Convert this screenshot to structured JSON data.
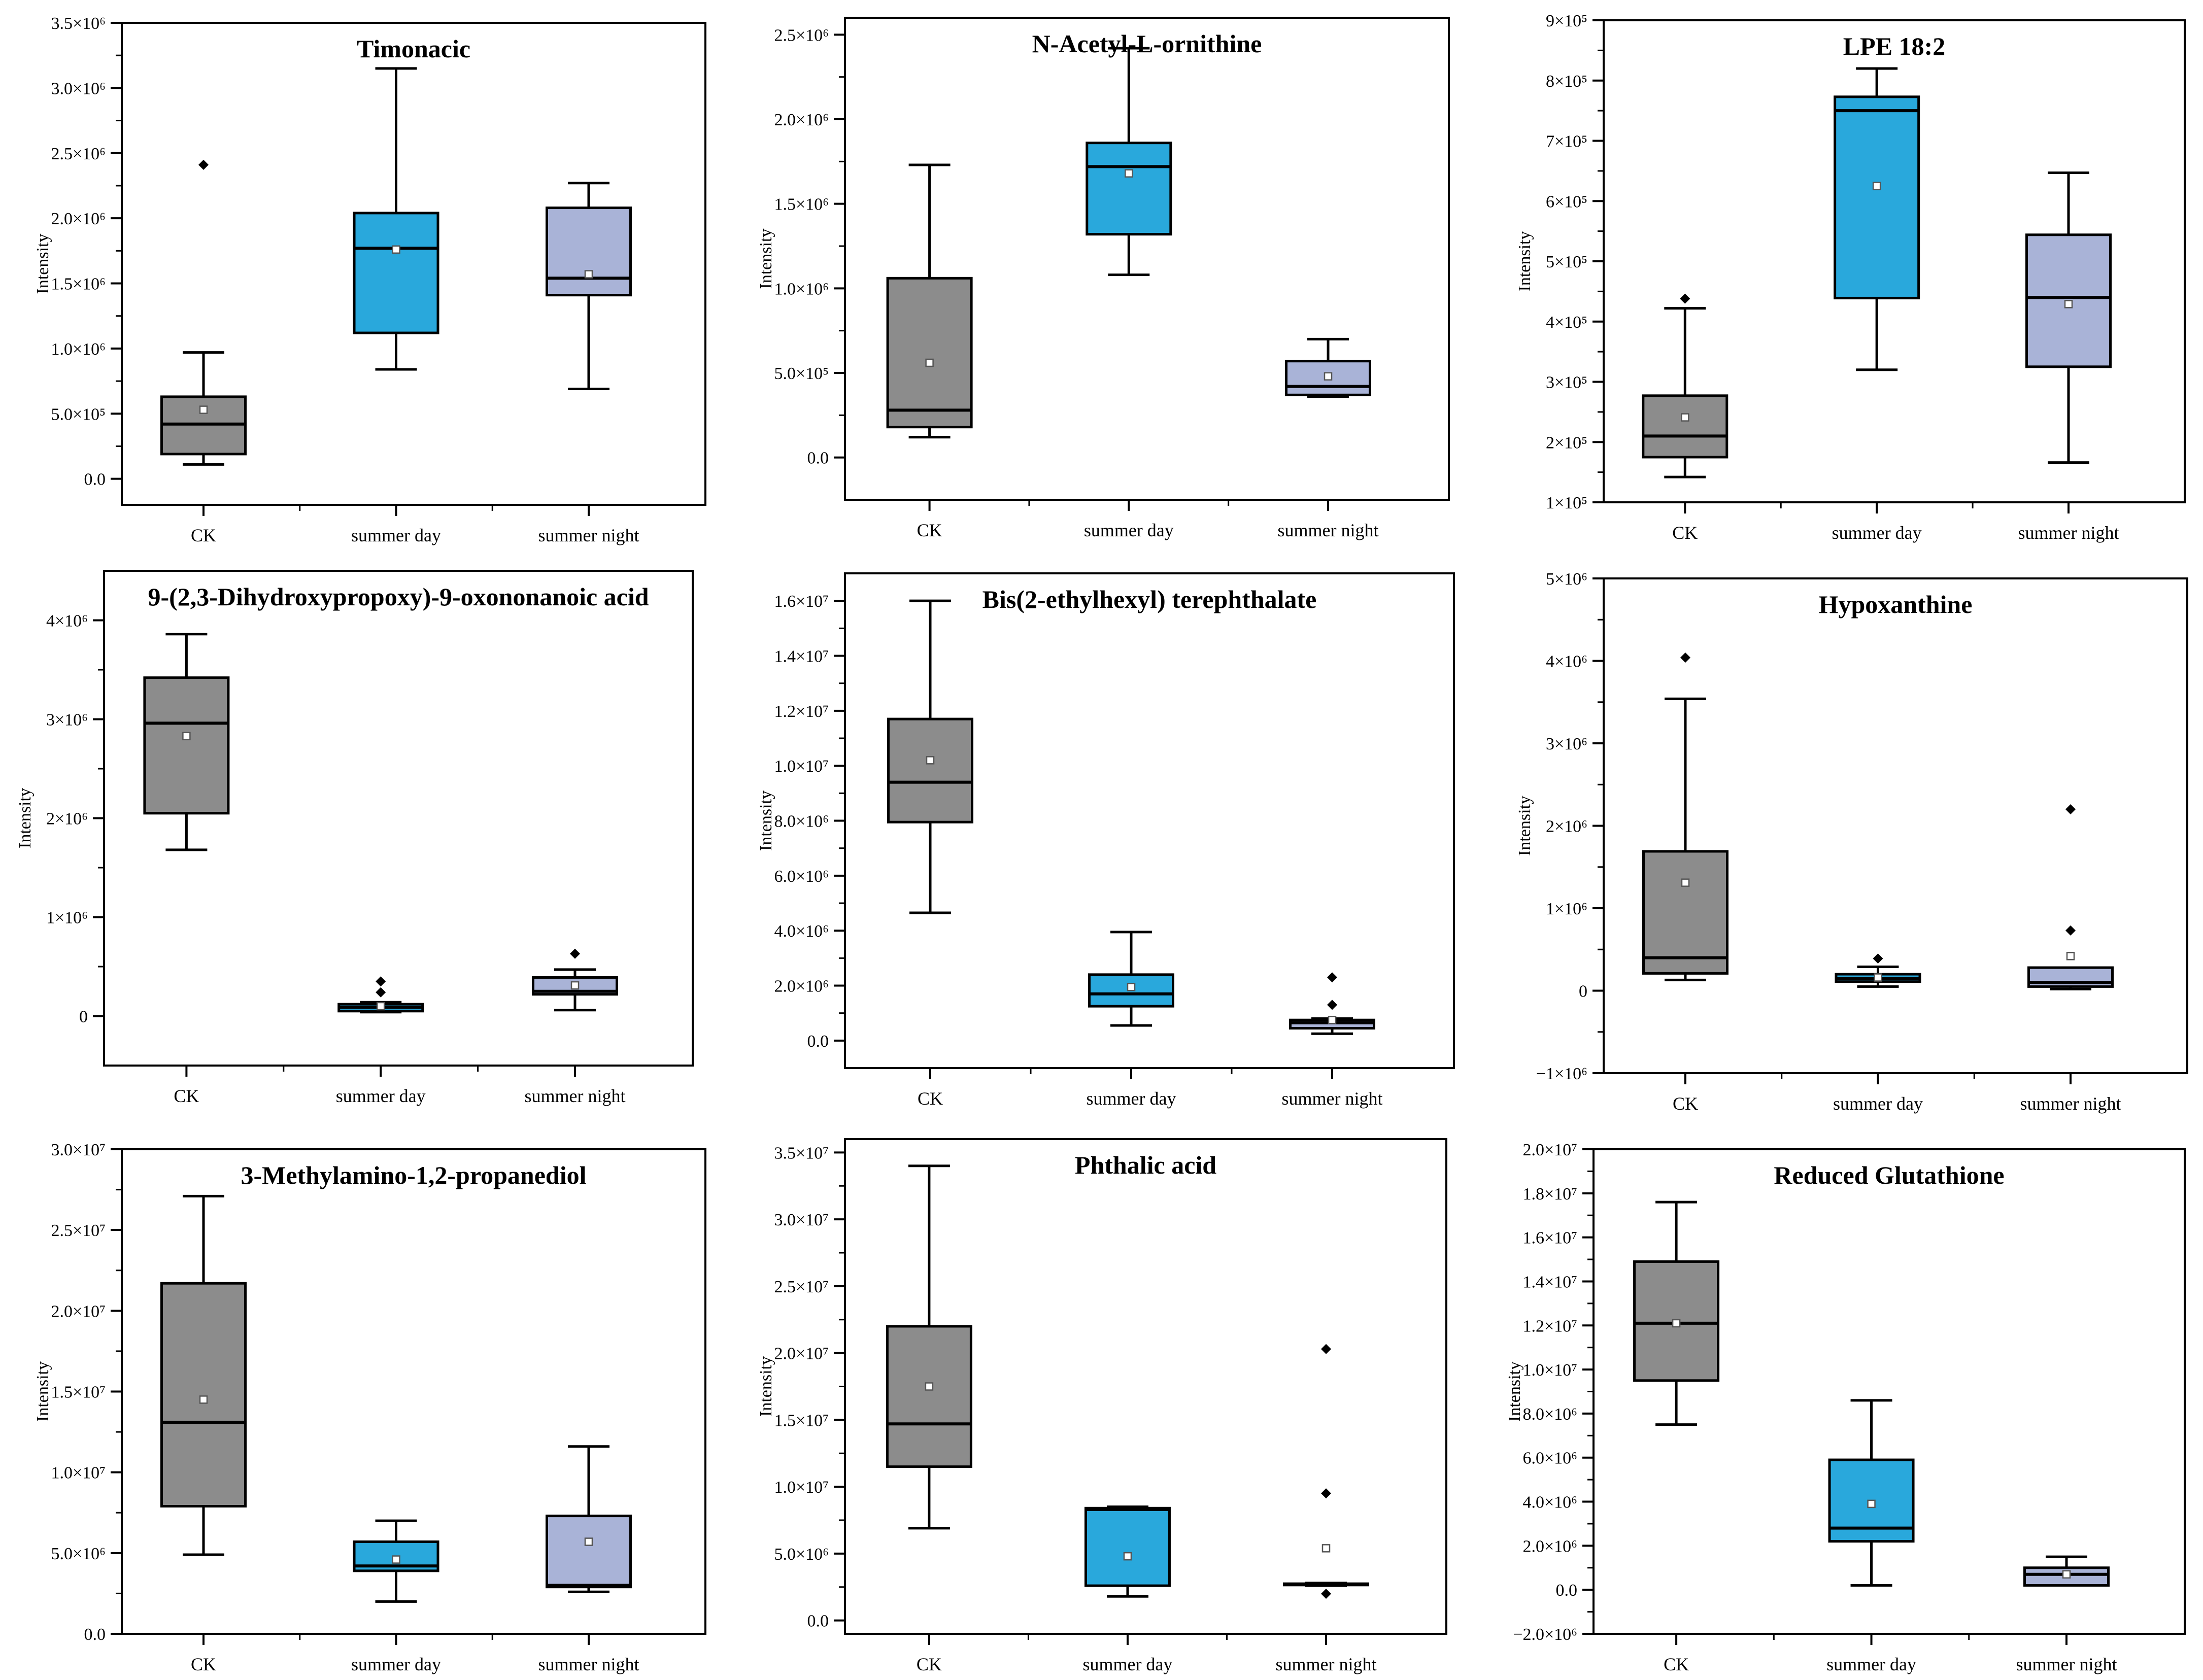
{
  "colors": {
    "CK": "#8c8c8c",
    "summer day": "#29a8dc",
    "summer night": "#a9b3d7"
  },
  "chart_data": [
    {
      "type": "box",
      "title": "Timonacic",
      "ylabel": "Intensity",
      "categories": [
        "CK",
        "summer day",
        "summer night"
      ],
      "ylim": [
        -200000,
        3500000
      ],
      "ticks": [
        {
          "v": 0,
          "label": "0.0"
        },
        {
          "v": 500000,
          "label": "5.0×10⁵"
        },
        {
          "v": 1000000,
          "label": "1.0×10⁶"
        },
        {
          "v": 1500000,
          "label": "1.5×10⁶"
        },
        {
          "v": 2000000,
          "label": "2.0×10⁶"
        },
        {
          "v": 2500000,
          "label": "2.5×10⁶"
        },
        {
          "v": 3000000,
          "label": "3.0×10⁶"
        },
        {
          "v": 3500000,
          "label": "3.5×10⁶"
        }
      ],
      "boxes": [
        {
          "min": 110000,
          "q1": 190000,
          "median": 420000,
          "q3": 630000,
          "max": 970000,
          "mean": 530000,
          "outliers": [
            2410000
          ]
        },
        {
          "min": 840000,
          "q1": 1120000,
          "median": 1770000,
          "q3": 2040000,
          "max": 3150000,
          "mean": 1760000,
          "outliers": []
        },
        {
          "min": 690000,
          "q1": 1410000,
          "median": 1540000,
          "q3": 2080000,
          "max": 2270000,
          "mean": 1570000,
          "outliers": []
        }
      ]
    },
    {
      "type": "box",
      "title": "N-Acetyl-L-ornithine",
      "ylabel": "Intensity",
      "categories": [
        "CK",
        "summer day",
        "summer night"
      ],
      "ylim": [
        -250000,
        2600000
      ],
      "ticks": [
        {
          "v": 0,
          "label": "0.0"
        },
        {
          "v": 500000,
          "label": "5.0×10⁵"
        },
        {
          "v": 1000000,
          "label": "1.0×10⁶"
        },
        {
          "v": 1500000,
          "label": "1.5×10⁶"
        },
        {
          "v": 2000000,
          "label": "2.0×10⁶"
        },
        {
          "v": 2500000,
          "label": "2.5×10⁶"
        }
      ],
      "boxes": [
        {
          "min": 120000,
          "q1": 180000,
          "median": 280000,
          "q3": 1060000,
          "max": 1730000,
          "mean": 560000,
          "outliers": []
        },
        {
          "min": 1080000,
          "q1": 1320000,
          "median": 1720000,
          "q3": 1860000,
          "max": 2420000,
          "mean": 1680000,
          "outliers": []
        },
        {
          "min": 360000,
          "q1": 370000,
          "median": 420000,
          "q3": 570000,
          "max": 700000,
          "mean": 480000,
          "outliers": []
        }
      ]
    },
    {
      "type": "box",
      "title": "LPE 18:2",
      "ylabel": "Intensity",
      "categories": [
        "CK",
        "summer day",
        "summer night"
      ],
      "ylim": [
        100000,
        900000
      ],
      "ticks": [
        {
          "v": 100000,
          "label": "1×10⁵"
        },
        {
          "v": 200000,
          "label": "2×10⁵"
        },
        {
          "v": 300000,
          "label": "3×10⁵"
        },
        {
          "v": 400000,
          "label": "4×10⁵"
        },
        {
          "v": 500000,
          "label": "5×10⁵"
        },
        {
          "v": 600000,
          "label": "6×10⁵"
        },
        {
          "v": 700000,
          "label": "7×10⁵"
        },
        {
          "v": 800000,
          "label": "8×10⁵"
        },
        {
          "v": 900000,
          "label": "9×10⁵"
        }
      ],
      "boxes": [
        {
          "min": 142000,
          "q1": 175000,
          "median": 210000,
          "q3": 277000,
          "max": 422000,
          "mean": 241000,
          "outliers": [
            438000
          ]
        },
        {
          "min": 320000,
          "q1": 439000,
          "median": 750000,
          "q3": 773000,
          "max": 820000,
          "mean": 625000,
          "outliers": []
        },
        {
          "min": 166000,
          "q1": 325000,
          "median": 440000,
          "q3": 544000,
          "max": 647000,
          "mean": 429000,
          "outliers": []
        }
      ]
    },
    {
      "type": "box",
      "title": "9-(2,3-Dihydroxypropoxy)-9-oxononanoic acid",
      "ylabel": "Intensity",
      "categories": [
        "CK",
        "summer day",
        "summer night"
      ],
      "ylim": [
        -500000,
        4500000
      ],
      "ticks": [
        {
          "v": 0,
          "label": "0"
        },
        {
          "v": 1000000,
          "label": "1×10⁶"
        },
        {
          "v": 2000000,
          "label": "2×10⁶"
        },
        {
          "v": 3000000,
          "label": "3×10⁶"
        },
        {
          "v": 4000000,
          "label": "4×10⁶"
        }
      ],
      "boxes": [
        {
          "min": 1680000,
          "q1": 2050000,
          "median": 2960000,
          "q3": 3420000,
          "max": 3860000,
          "mean": 2830000,
          "outliers": []
        },
        {
          "min": 40000,
          "q1": 50000,
          "median": 90000,
          "q3": 120000,
          "max": 140000,
          "mean": 100000,
          "outliers": [
            240000,
            350000
          ]
        },
        {
          "min": 60000,
          "q1": 220000,
          "median": 250000,
          "q3": 390000,
          "max": 470000,
          "mean": 310000,
          "outliers": [
            630000
          ]
        }
      ]
    },
    {
      "type": "box",
      "title": "Bis(2-ethylhexyl) terephthalate",
      "ylabel": "Intensity",
      "categories": [
        "CK",
        "summer day",
        "summer night"
      ],
      "ylim": [
        -1000000,
        17000000
      ],
      "ticks": [
        {
          "v": 0,
          "label": "0.0"
        },
        {
          "v": 2000000,
          "label": "2.0×10⁶"
        },
        {
          "v": 4000000,
          "label": "4.0×10⁶"
        },
        {
          "v": 6000000,
          "label": "6.0×10⁶"
        },
        {
          "v": 8000000,
          "label": "8.0×10⁶"
        },
        {
          "v": 10000000,
          "label": "1.0×10⁷"
        },
        {
          "v": 12000000,
          "label": "1.2×10⁷"
        },
        {
          "v": 14000000,
          "label": "1.4×10⁷"
        },
        {
          "v": 16000000,
          "label": "1.6×10⁷"
        }
      ],
      "boxes": [
        {
          "min": 4650000,
          "q1": 7950000,
          "median": 9400000,
          "q3": 11700000,
          "max": 16000000,
          "mean": 10200000,
          "outliers": []
        },
        {
          "min": 550000,
          "q1": 1250000,
          "median": 1700000,
          "q3": 2400000,
          "max": 3950000,
          "mean": 1950000,
          "outliers": []
        },
        {
          "min": 250000,
          "q1": 450000,
          "median": 650000,
          "q3": 750000,
          "max": 800000,
          "mean": 750000,
          "outliers": [
            1300000,
            2300000
          ]
        }
      ]
    },
    {
      "type": "box",
      "title": "Hypoxanthine",
      "ylabel": "Intensity",
      "categories": [
        "CK",
        "summer day",
        "summer night"
      ],
      "ylim": [
        -1000000,
        5000000
      ],
      "ticks": [
        {
          "v": -1000000,
          "label": "−1×10⁶"
        },
        {
          "v": 0,
          "label": "0"
        },
        {
          "v": 1000000,
          "label": "1×10⁶"
        },
        {
          "v": 2000000,
          "label": "2×10⁶"
        },
        {
          "v": 3000000,
          "label": "3×10⁶"
        },
        {
          "v": 4000000,
          "label": "4×10⁶"
        },
        {
          "v": 5000000,
          "label": "5×10⁶"
        }
      ],
      "boxes": [
        {
          "min": 130000,
          "q1": 210000,
          "median": 400000,
          "q3": 1690000,
          "max": 3540000,
          "mean": 1310000,
          "outliers": [
            4040000
          ]
        },
        {
          "min": 50000,
          "q1": 110000,
          "median": 150000,
          "q3": 200000,
          "max": 290000,
          "mean": 160000,
          "outliers": [
            390000
          ]
        },
        {
          "min": 20000,
          "q1": 50000,
          "median": 100000,
          "q3": 280000,
          "max": 280000,
          "mean": 420000,
          "outliers": [
            730000,
            2200000
          ]
        }
      ]
    },
    {
      "type": "box",
      "title": "3-Methylamino-1,2-propanediol",
      "ylabel": "Intensity",
      "categories": [
        "CK",
        "summer day",
        "summer night"
      ],
      "ylim": [
        0,
        30000000
      ],
      "ticks": [
        {
          "v": 0,
          "label": "0.0"
        },
        {
          "v": 5000000,
          "label": "5.0×10⁶"
        },
        {
          "v": 10000000,
          "label": "1.0×10⁷"
        },
        {
          "v": 15000000,
          "label": "1.5×10⁷"
        },
        {
          "v": 20000000,
          "label": "2.0×10⁷"
        },
        {
          "v": 25000000,
          "label": "2.5×10⁷"
        },
        {
          "v": 30000000,
          "label": "3.0×10⁷"
        }
      ],
      "boxes": [
        {
          "min": 4900000,
          "q1": 7900000,
          "median": 13100000,
          "q3": 21700000,
          "max": 27100000,
          "mean": 14500000,
          "outliers": []
        },
        {
          "min": 2000000,
          "q1": 3900000,
          "median": 4200000,
          "q3": 5700000,
          "max": 7000000,
          "mean": 4600000,
          "outliers": []
        },
        {
          "min": 2600000,
          "q1": 2900000,
          "median": 3000000,
          "q3": 7300000,
          "max": 11600000,
          "mean": 5700000,
          "outliers": []
        }
      ]
    },
    {
      "type": "box",
      "title": "Phthalic acid",
      "ylabel": "Intensity",
      "categories": [
        "CK",
        "summer day",
        "summer night"
      ],
      "ylim": [
        -1000000,
        36000000
      ],
      "ticks": [
        {
          "v": 0,
          "label": "0.0"
        },
        {
          "v": 5000000,
          "label": "5.0×10⁶"
        },
        {
          "v": 10000000,
          "label": "1.0×10⁷"
        },
        {
          "v": 15000000,
          "label": "1.5×10⁷"
        },
        {
          "v": 20000000,
          "label": "2.0×10⁷"
        },
        {
          "v": 25000000,
          "label": "2.5×10⁷"
        },
        {
          "v": 30000000,
          "label": "3.0×10⁷"
        },
        {
          "v": 35000000,
          "label": "3.5×10⁷"
        }
      ],
      "boxes": [
        {
          "min": 6900000,
          "q1": 11500000,
          "median": 14700000,
          "q3": 22000000,
          "max": 34000000,
          "mean": 17500000,
          "outliers": []
        },
        {
          "min": 1800000,
          "q1": 2600000,
          "median": 8300000,
          "q3": 8400000,
          "max": 8500000,
          "mean": 4800000,
          "outliers": []
        },
        {
          "min": 2600000,
          "q1": 2650000,
          "median": 2700000,
          "q3": 2750000,
          "max": 2800000,
          "mean": 5400000,
          "outliers": [
            2000000,
            9500000,
            20300000
          ]
        }
      ]
    },
    {
      "type": "box",
      "title": "Reduced Glutathione",
      "ylabel": "Intensity",
      "categories": [
        "CK",
        "summer day",
        "summer night"
      ],
      "ylim": [
        -2000000,
        20000000
      ],
      "ticks": [
        {
          "v": -2000000,
          "label": "−2.0×10⁶"
        },
        {
          "v": 0,
          "label": "0.0"
        },
        {
          "v": 2000000,
          "label": "2.0×10⁶"
        },
        {
          "v": 4000000,
          "label": "4.0×10⁶"
        },
        {
          "v": 6000000,
          "label": "6.0×10⁶"
        },
        {
          "v": 8000000,
          "label": "8.0×10⁶"
        },
        {
          "v": 10000000,
          "label": "1.0×10⁷"
        },
        {
          "v": 12000000,
          "label": "1.2×10⁷"
        },
        {
          "v": 14000000,
          "label": "1.4×10⁷"
        },
        {
          "v": 16000000,
          "label": "1.6×10⁷"
        },
        {
          "v": 18000000,
          "label": "1.8×10⁷"
        },
        {
          "v": 20000000,
          "label": "2.0×10⁷"
        }
      ],
      "boxes": [
        {
          "min": 7500000,
          "q1": 9500000,
          "median": 12100000,
          "q3": 14900000,
          "max": 17600000,
          "mean": 12100000,
          "outliers": []
        },
        {
          "min": 200000,
          "q1": 2200000,
          "median": 2800000,
          "q3": 5900000,
          "max": 8600000,
          "mean": 3900000,
          "outliers": []
        },
        {
          "min": 200000,
          "q1": 200000,
          "median": 700000,
          "q3": 1000000,
          "max": 1500000,
          "mean": 700000,
          "outliers": []
        }
      ]
    }
  ]
}
